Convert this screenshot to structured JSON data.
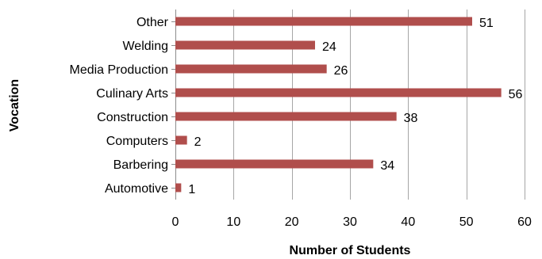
{
  "chart_data": {
    "type": "bar",
    "orientation": "horizontal",
    "categories": [
      "Automotive",
      "Barbering",
      "Computers",
      "Construction",
      "Culinary Arts",
      "Media Production",
      "Welding",
      "Other"
    ],
    "values": [
      1,
      34,
      2,
      38,
      56,
      26,
      24,
      51
    ],
    "xlabel": "Number of Students",
    "ylabel": "Vocation",
    "xlim": [
      0,
      60
    ],
    "xticks": [
      0,
      10,
      20,
      30,
      40,
      50,
      60
    ],
    "grid": "vertical",
    "legend": "none",
    "bar_color": "#b04e4c",
    "data_labels": true
  }
}
